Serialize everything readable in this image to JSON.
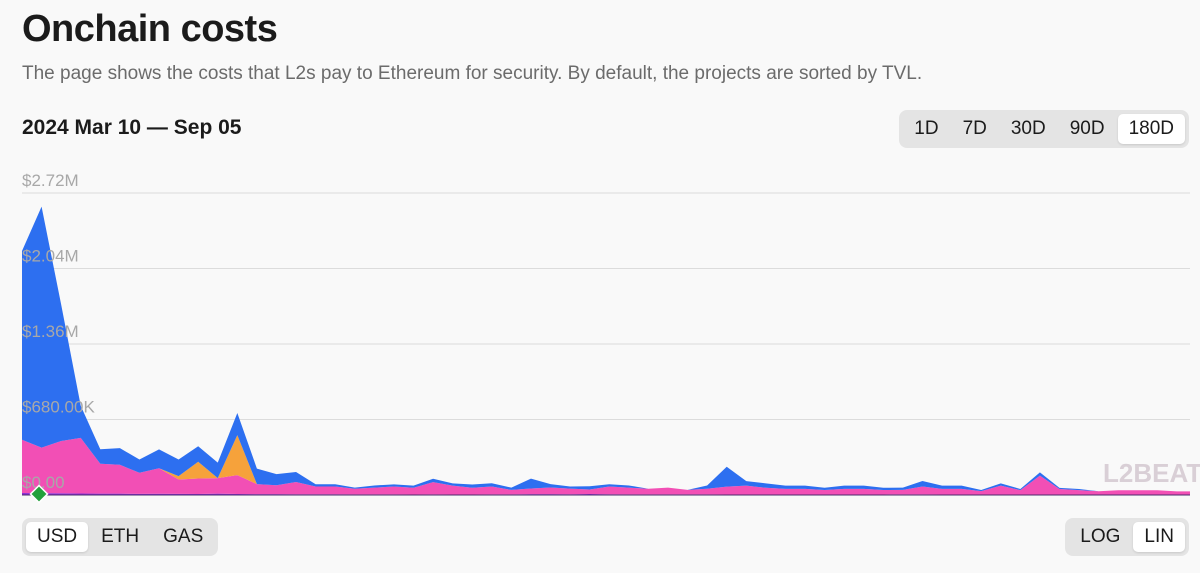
{
  "header": {
    "title": "Onchain costs",
    "description": "The page shows the costs that L2s pay to Ethereum for security. By default, the projects are sorted by TVL."
  },
  "range_label": "2024 Mar 10 — Sep 05",
  "time_buttons": [
    {
      "label": "1D",
      "active": false
    },
    {
      "label": "7D",
      "active": false
    },
    {
      "label": "30D",
      "active": false
    },
    {
      "label": "90D",
      "active": false
    },
    {
      "label": "180D",
      "active": true
    }
  ],
  "unit_buttons": [
    {
      "label": "USD",
      "active": true
    },
    {
      "label": "ETH",
      "active": false
    },
    {
      "label": "GAS",
      "active": false
    }
  ],
  "scale_buttons": [
    {
      "label": "LOG",
      "active": false
    },
    {
      "label": "LIN",
      "active": true
    }
  ],
  "watermark": "L2BEAT",
  "colors": {
    "series_blue": "#2d6ff0",
    "series_orange": "#f6a23b",
    "series_pink": "#f24fb5",
    "series_purple": "#8c2fd6",
    "grid": "#dcdcdc",
    "marker": "#23a03c"
  },
  "chart_data": {
    "type": "area",
    "stacked": true,
    "title": "",
    "xlabel": "",
    "ylabel": "",
    "x_range": [
      "2024-03-10",
      "2024-09-05"
    ],
    "ylim": [
      0,
      2720000
    ],
    "y_ticks": [
      {
        "value": 0,
        "label": "$0.00"
      },
      {
        "value": 680000,
        "label": "$680.00K"
      },
      {
        "value": 1360000,
        "label": "$1.36M"
      },
      {
        "value": 2040000,
        "label": "$2.04M"
      },
      {
        "value": 2720000,
        "label": "$2.72M"
      }
    ],
    "log_scale": false,
    "grid": true,
    "x": [
      0,
      3,
      6,
      9,
      12,
      15,
      18,
      21,
      24,
      27,
      30,
      33,
      36,
      39,
      42,
      45,
      48,
      51,
      54,
      57,
      60,
      63,
      66,
      69,
      72,
      75,
      78,
      81,
      84,
      87,
      90,
      93,
      96,
      99,
      102,
      105,
      108,
      111,
      114,
      117,
      120,
      123,
      126,
      129,
      132,
      135,
      138,
      141,
      144,
      147,
      150,
      153,
      156,
      159,
      162,
      165,
      168,
      171,
      174,
      177,
      179
    ],
    "series": [
      {
        "values": [
          18000,
          17000,
          16000,
          14000,
          12000,
          12000,
          10000,
          11000,
          10000,
          9000,
          12000,
          9000,
          8000,
          8000,
          7000,
          7000,
          7000,
          6000,
          6000,
          6000,
          5000,
          6000,
          5000,
          5000,
          6000,
          6000,
          8000,
          8000,
          7000,
          9000,
          7000,
          6000,
          6000,
          6000,
          6000,
          6000,
          5000,
          5000,
          5000,
          5000,
          5000,
          5000,
          5000,
          5000,
          5000,
          6000,
          6000,
          5000,
          5000,
          5000,
          5000,
          4000,
          4000,
          4000,
          4000,
          4000,
          3000,
          3000,
          3000,
          3000,
          3000
        ]
      },
      {
        "values": [
          480000,
          410000,
          470000,
          500000,
          270000,
          260000,
          190000,
          230000,
          130000,
          140000,
          140000,
          170000,
          90000,
          80000,
          110000,
          70000,
          70000,
          50000,
          60000,
          70000,
          60000,
          110000,
          80000,
          60000,
          70000,
          40000,
          50000,
          60000,
          50000,
          40000,
          70000,
          60000,
          50000,
          60000,
          40000,
          50000,
          70000,
          80000,
          60000,
          50000,
          50000,
          40000,
          50000,
          50000,
          40000,
          40000,
          70000,
          50000,
          50000,
          30000,
          80000,
          40000,
          170000,
          50000,
          40000,
          30000,
          40000,
          40000,
          40000,
          30000,
          30000
        ]
      },
      {
        "values": [
          0,
          0,
          0,
          0,
          0,
          0,
          0,
          0,
          30000,
          150000,
          0,
          360000,
          0,
          0,
          0,
          0,
          0,
          0,
          0,
          0,
          0,
          0,
          0,
          0,
          0,
          0,
          0,
          0,
          0,
          0,
          0,
          0,
          0,
          0,
          0,
          0,
          0,
          0,
          0,
          0,
          0,
          0,
          0,
          0,
          0,
          0,
          0,
          0,
          0,
          0,
          0,
          0,
          0,
          0,
          0,
          0,
          0,
          0,
          0,
          0,
          0
        ]
      },
      {
        "values": [
          1700000,
          2170000,
          1230000,
          290000,
          130000,
          150000,
          120000,
          170000,
          150000,
          140000,
          140000,
          200000,
          140000,
          100000,
          90000,
          20000,
          20000,
          10000,
          20000,
          20000,
          20000,
          30000,
          20000,
          30000,
          30000,
          20000,
          90000,
          30000,
          20000,
          30000,
          20000,
          20000,
          0,
          0,
          0,
          30000,
          180000,
          40000,
          40000,
          30000,
          30000,
          20000,
          30000,
          30000,
          20000,
          20000,
          50000,
          30000,
          30000,
          10000,
          20000,
          10000,
          30000,
          10000,
          10000,
          0,
          0,
          0,
          0,
          0,
          0
        ]
      }
    ]
  }
}
